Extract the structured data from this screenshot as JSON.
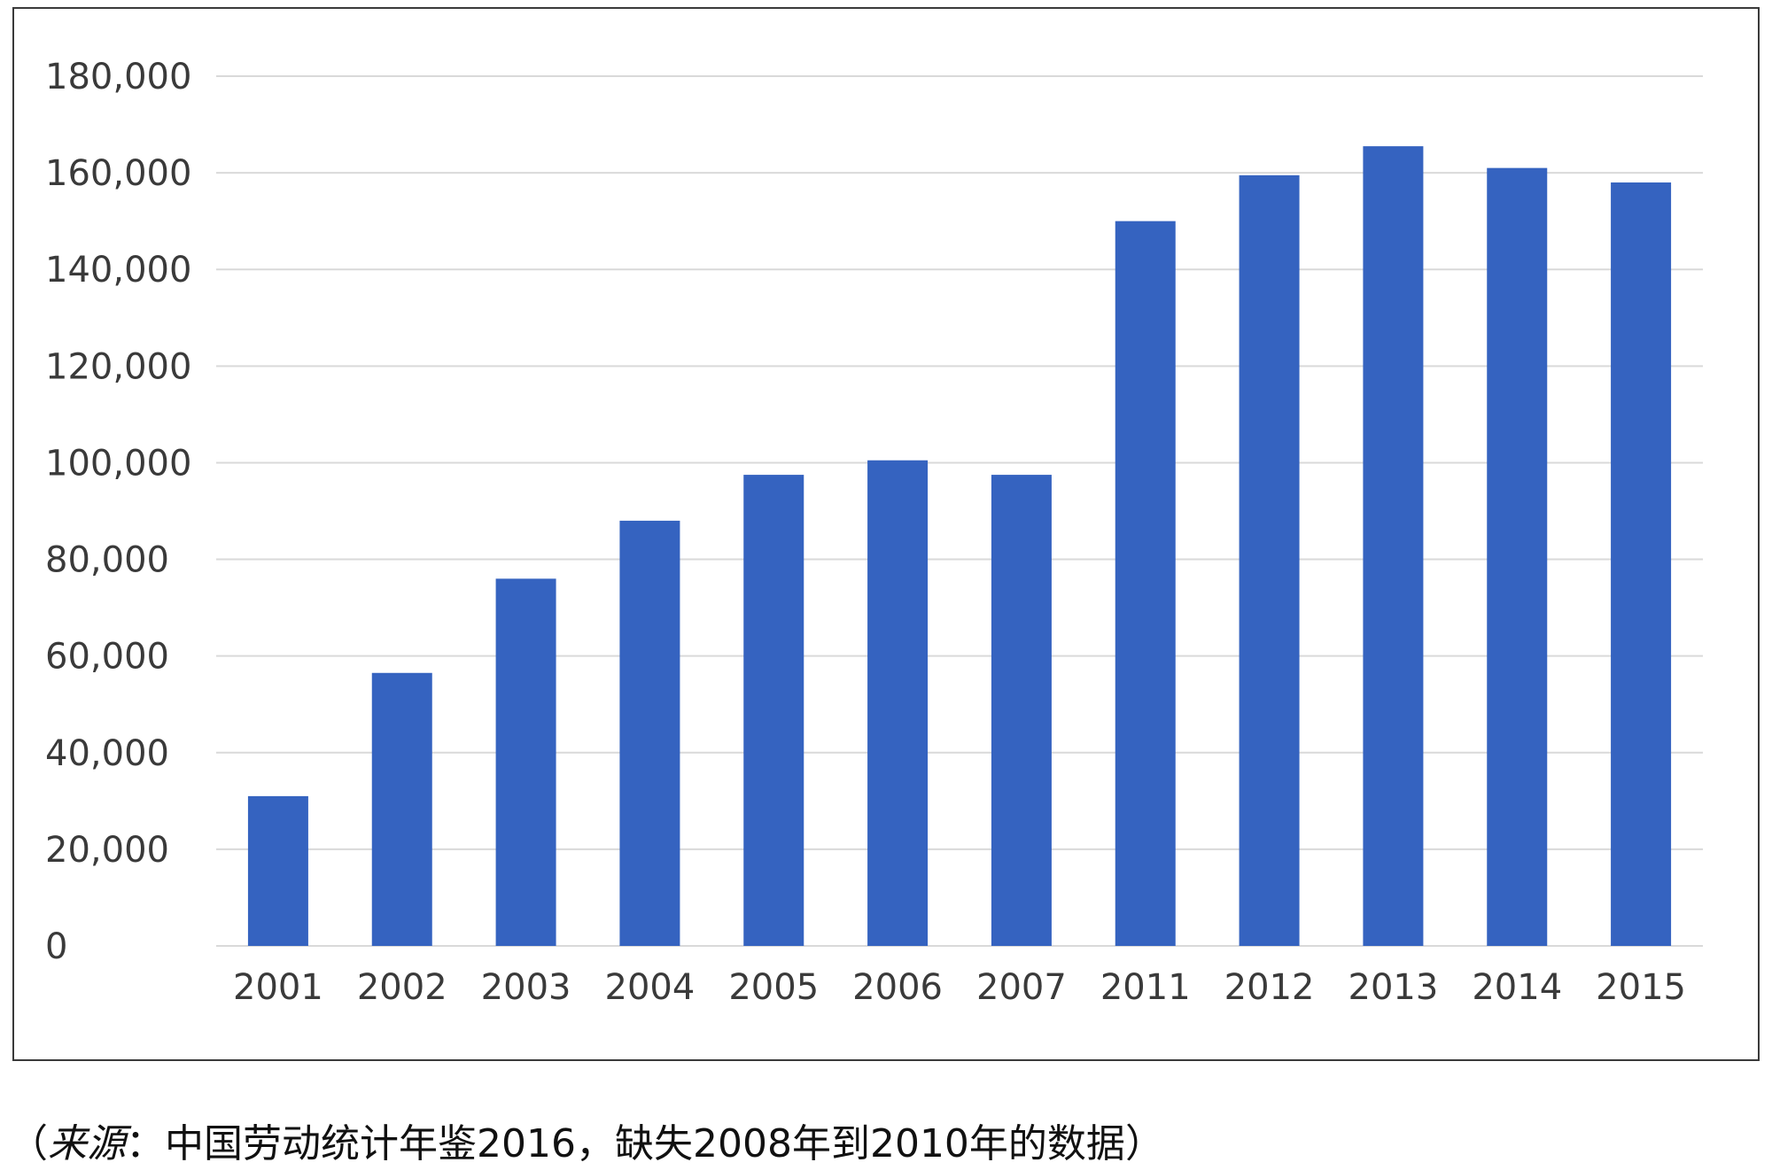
{
  "chart_data": {
    "type": "bar",
    "categories": [
      "2001",
      "2002",
      "2003",
      "2004",
      "2005",
      "2006",
      "2007",
      "2011",
      "2012",
      "2013",
      "2014",
      "2015"
    ],
    "values": [
      31000,
      56500,
      76000,
      88000,
      97500,
      100500,
      97500,
      150000,
      159500,
      165500,
      161000,
      158000
    ],
    "ylim": [
      0,
      180000
    ],
    "yticks": [
      0,
      20000,
      40000,
      60000,
      80000,
      100000,
      120000,
      140000,
      160000,
      180000
    ],
    "ytick_labels": [
      "0",
      "20,000",
      "40,000",
      "60,000",
      "80,000",
      "100,000",
      "120,000",
      "140,000",
      "160,000",
      "180,000"
    ],
    "title": "",
    "xlabel": "",
    "ylabel": "",
    "grid": "horizontal",
    "legend": "none",
    "bar_color": "#3563c0",
    "grid_color": "#d9d9d9"
  },
  "caption": {
    "open_paren": "（",
    "source_label": "来源",
    "colon": "：",
    "text": "中国劳动统计年鉴2016，缺失2008年到2010年的数据",
    "close_paren": "）"
  }
}
